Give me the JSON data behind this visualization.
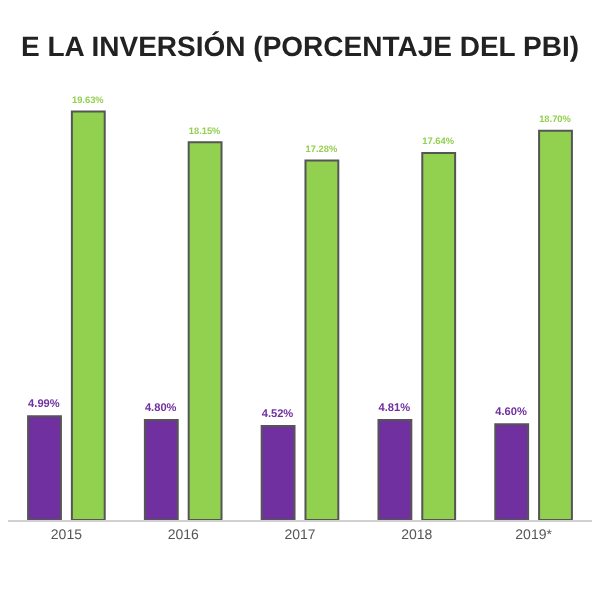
{
  "chart_data": {
    "type": "bar",
    "title": "E LA INVERSIÓN (PORCENTAJE DEL PBI)",
    "categories": [
      "2015",
      "2016",
      "2017",
      "2018",
      "2019*"
    ],
    "series": [
      {
        "color": "#7030a0",
        "values": [
          4.99,
          4.8,
          4.52,
          4.81,
          4.6
        ],
        "value_labels": [
          "4.99%",
          "4.80%",
          "4.52%",
          "4.81%",
          "4.60%"
        ]
      },
      {
        "color": "#92d050",
        "values": [
          19.63,
          18.15,
          17.28,
          17.64,
          18.7
        ],
        "value_labels": [
          "19.63%",
          "18.15%",
          "17.28%",
          "17.64%",
          "18.70%"
        ]
      }
    ]
  }
}
